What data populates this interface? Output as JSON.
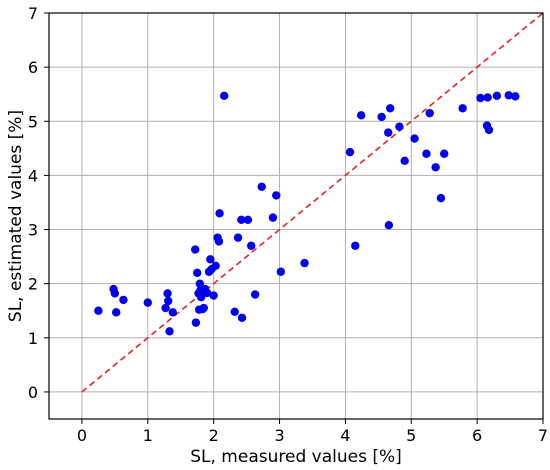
{
  "chart_data": {
    "type": "scatter",
    "xlabel": "SL, measured values [%]",
    "ylabel": "SL, estimated values [%]",
    "xlim": [
      -0.5,
      7
    ],
    "ylim": [
      -0.5,
      7
    ],
    "xticks": [
      0,
      1,
      2,
      3,
      4,
      5,
      6,
      7
    ],
    "yticks": [
      0,
      1,
      2,
      3,
      4,
      5,
      6,
      7
    ],
    "grid": true,
    "marker_color": "#0000ee",
    "reference_line": {
      "style": "dashed",
      "color": "#e82020",
      "from": [
        0,
        0
      ],
      "to": [
        7,
        7
      ]
    },
    "points": [
      [
        0.25,
        1.5
      ],
      [
        0.48,
        1.9
      ],
      [
        0.5,
        1.82
      ],
      [
        0.52,
        1.47
      ],
      [
        0.63,
        1.7
      ],
      [
        1.0,
        1.65
      ],
      [
        1.27,
        1.55
      ],
      [
        1.3,
        1.82
      ],
      [
        1.31,
        1.68
      ],
      [
        1.33,
        1.12
      ],
      [
        1.38,
        1.47
      ],
      [
        1.72,
        2.63
      ],
      [
        1.73,
        1.28
      ],
      [
        1.75,
        2.2
      ],
      [
        1.77,
        1.82
      ],
      [
        1.78,
        1.52
      ],
      [
        1.79,
        2.0
      ],
      [
        1.8,
        1.88
      ],
      [
        1.81,
        1.75
      ],
      [
        1.83,
        1.53
      ],
      [
        1.85,
        1.55
      ],
      [
        1.87,
        1.9
      ],
      [
        1.9,
        1.83
      ],
      [
        1.93,
        2.22
      ],
      [
        1.95,
        2.45
      ],
      [
        1.97,
        2.27
      ],
      [
        2.0,
        1.78
      ],
      [
        2.03,
        2.33
      ],
      [
        2.06,
        2.85
      ],
      [
        2.08,
        2.78
      ],
      [
        2.09,
        3.3
      ],
      [
        2.16,
        5.47
      ],
      [
        2.32,
        1.48
      ],
      [
        2.37,
        2.85
      ],
      [
        2.42,
        3.18
      ],
      [
        2.43,
        1.37
      ],
      [
        2.52,
        3.18
      ],
      [
        2.57,
        2.7
      ],
      [
        2.63,
        1.8
      ],
      [
        2.73,
        3.79
      ],
      [
        2.9,
        3.22
      ],
      [
        2.95,
        3.63
      ],
      [
        3.02,
        2.22
      ],
      [
        3.38,
        2.38
      ],
      [
        4.07,
        4.43
      ],
      [
        4.15,
        2.7
      ],
      [
        4.24,
        5.11
      ],
      [
        4.55,
        5.08
      ],
      [
        4.65,
        4.79
      ],
      [
        4.66,
        3.08
      ],
      [
        4.68,
        5.24
      ],
      [
        4.82,
        4.9
      ],
      [
        4.9,
        4.27
      ],
      [
        5.05,
        4.68
      ],
      [
        5.23,
        4.4
      ],
      [
        5.28,
        5.15
      ],
      [
        5.37,
        4.15
      ],
      [
        5.45,
        3.58
      ],
      [
        5.5,
        4.4
      ],
      [
        5.78,
        5.24
      ],
      [
        6.05,
        5.43
      ],
      [
        6.15,
        4.92
      ],
      [
        6.16,
        5.44
      ],
      [
        6.18,
        4.84
      ],
      [
        6.3,
        5.47
      ],
      [
        6.48,
        5.48
      ],
      [
        6.58,
        5.46
      ]
    ]
  }
}
